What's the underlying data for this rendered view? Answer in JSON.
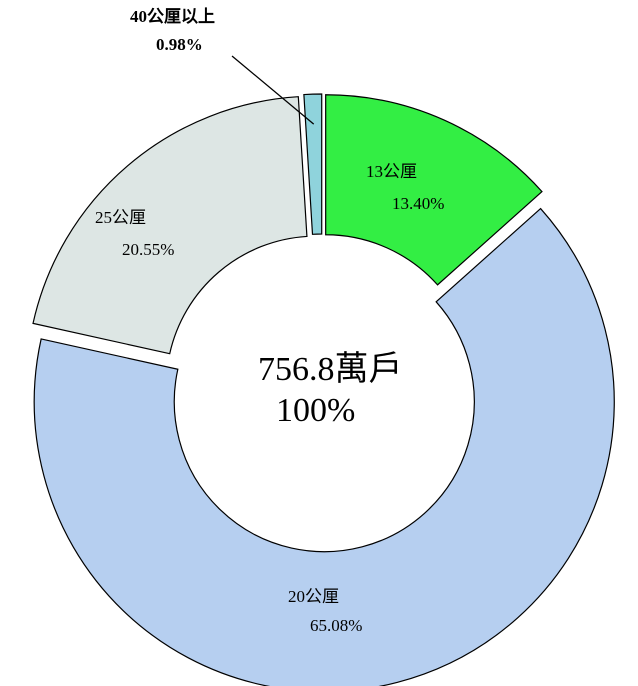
{
  "chart_data": {
    "type": "donut",
    "categories": [
      "13公厘",
      "20公厘",
      "25公厘",
      "40公厘以上"
    ],
    "values": [
      13.4,
      65.08,
      20.55,
      0.98
    ],
    "value_labels": [
      "13.40%",
      "65.08%",
      "20.55%",
      "0.98%"
    ],
    "colors": [
      "#33ee44",
      "#b6cff0",
      "#dde6e4",
      "#8fd3dc"
    ],
    "center_label": [
      "756.8萬戶",
      "100%"
    ]
  }
}
